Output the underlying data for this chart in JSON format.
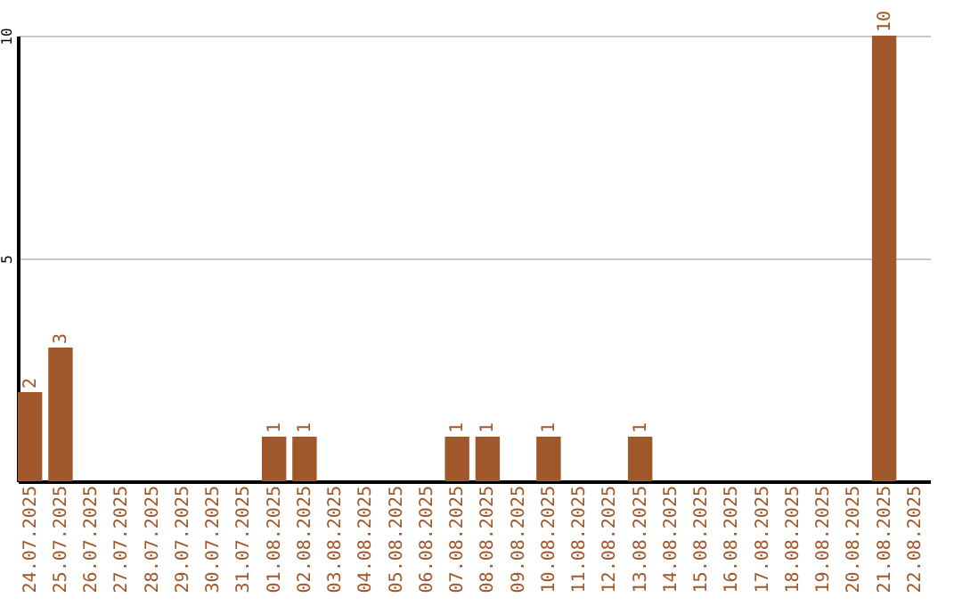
{
  "chart_data": {
    "type": "bar",
    "categories": [
      "24.07.2025",
      "25.07.2025",
      "26.07.2025",
      "27.07.2025",
      "28.07.2025",
      "29.07.2025",
      "30.07.2025",
      "31.07.2025",
      "01.08.2025",
      "02.08.2025",
      "03.08.2025",
      "04.08.2025",
      "05.08.2025",
      "06.08.2025",
      "07.08.2025",
      "08.08.2025",
      "09.08.2025",
      "10.08.2025",
      "11.08.2025",
      "12.08.2025",
      "13.08.2025",
      "14.08.2025",
      "15.08.2025",
      "16.08.2025",
      "17.08.2025",
      "18.08.2025",
      "19.08.2025",
      "20.08.2025",
      "21.08.2025",
      "22.08.2025"
    ],
    "values": [
      2,
      3,
      0,
      0,
      0,
      0,
      0,
      0,
      1,
      1,
      0,
      0,
      0,
      0,
      1,
      1,
      0,
      1,
      0,
      0,
      1,
      0,
      0,
      0,
      0,
      0,
      0,
      0,
      10,
      0
    ],
    "value_labels": [
      "2",
      "3",
      null,
      null,
      null,
      null,
      null,
      null,
      "1",
      "1",
      null,
      null,
      null,
      null,
      "1",
      "1",
      null,
      "1",
      null,
      null,
      "1",
      null,
      null,
      null,
      null,
      null,
      null,
      null,
      "10",
      null
    ],
    "color": "#a0572a",
    "ylim": [
      0,
      10
    ],
    "yticks": [
      5,
      10
    ],
    "grid": "y"
  }
}
